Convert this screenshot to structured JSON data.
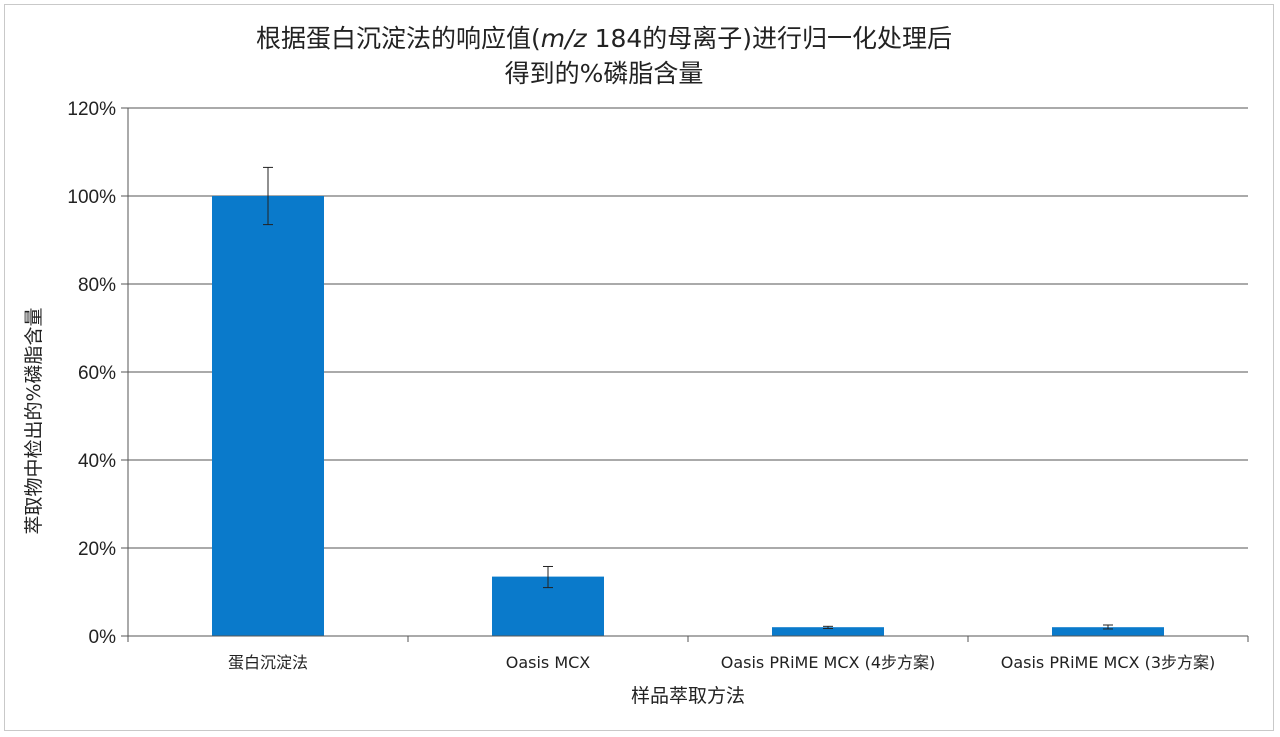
{
  "chart_data": {
    "type": "bar",
    "title_line1_prefix": "根据蛋白沉淀法的响应值(",
    "title_line1_italic": "m/z",
    "title_line1_suffix": " 184的母离子)进行归一化处理后",
    "title_line2": "得到的%磷脂含量",
    "xlabel": "样品萃取方法",
    "ylabel": "萃取物中检出的%磷脂含量",
    "categories": [
      "蛋白沉淀法",
      "Oasis MCX",
      "Oasis PRiME MCX (4步方案)",
      "Oasis PRiME MCX (3步方案)"
    ],
    "series": [
      {
        "values": [
          100,
          13.5,
          2.0,
          2.0
        ],
        "error_low": [
          93.5,
          11.0,
          1.7,
          1.6
        ],
        "error_high": [
          106.5,
          15.8,
          2.2,
          2.5
        ]
      }
    ],
    "ylim": [
      0,
      120
    ],
    "yticks": [
      0,
      20,
      40,
      60,
      80,
      100,
      120
    ],
    "ytick_labels": [
      "0%",
      "20%",
      "40%",
      "60%",
      "80%",
      "100%",
      "120%"
    ],
    "grid": true,
    "legend": "none",
    "bar_color": "#0a7acb",
    "gridline_color": "#555555"
  }
}
